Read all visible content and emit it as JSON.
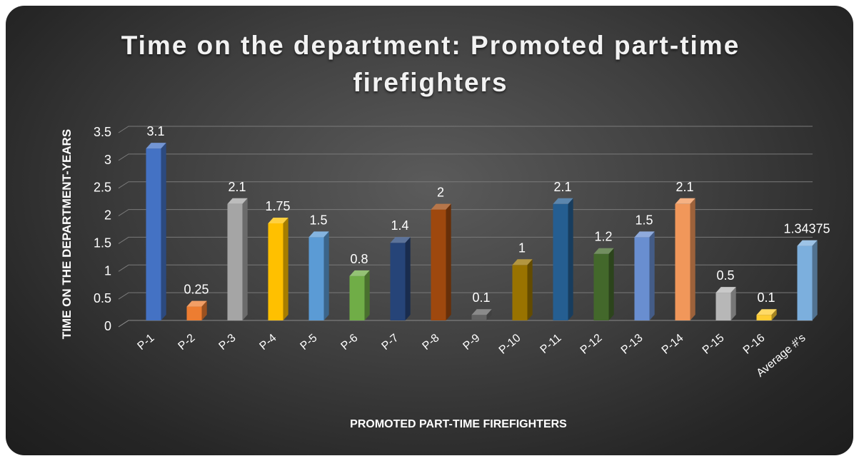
{
  "chart_data": {
    "type": "bar",
    "title": "Time on the department: Promoted part-time firefighters",
    "xlabel": "PROMOTED PART-TIME FIREFIGHTERS",
    "ylabel": "TIME ON THE DEPARTMENT-YEARS",
    "ylim": [
      0,
      3.5
    ],
    "yticks": [
      "0",
      "0.5",
      "1",
      "1.5",
      "2",
      "2.5",
      "3",
      "3.5"
    ],
    "grid": true,
    "categories": [
      "P-1",
      "P-2",
      "P-3",
      "P-4",
      "P-5",
      "P-6",
      "P-7",
      "P-8",
      "P-9",
      "P-10",
      "P-11",
      "P-12",
      "P-13",
      "P-14",
      "P-15",
      "P-16",
      "Average #'s"
    ],
    "values": [
      3.1,
      0.25,
      2.1,
      1.75,
      1.5,
      0.8,
      1.4,
      2,
      0.1,
      1,
      2.1,
      1.2,
      1.5,
      2.1,
      0.5,
      0.1,
      1.34375
    ],
    "data_labels": [
      "3.1",
      "0.25",
      "2.1",
      "1.75",
      "1.5",
      "0.8",
      "1.4",
      "2",
      "0.1",
      "1",
      "2.1",
      "1.2",
      "1.5",
      "2.1",
      "0.5",
      "0.1",
      "1.34375"
    ],
    "colors": [
      "#4472c4",
      "#ed7d31",
      "#a5a5a5",
      "#ffc000",
      "#5b9bd5",
      "#70ad47",
      "#264478",
      "#9e480e",
      "#636363",
      "#997300",
      "#255e91",
      "#43682b",
      "#698ed0",
      "#f1975a",
      "#b7b7b7",
      "#ffcd33",
      "#7cafdd"
    ]
  }
}
